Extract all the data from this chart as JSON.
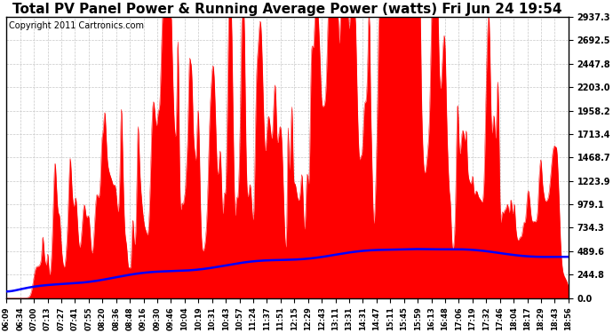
{
  "title": "Total PV Panel Power & Running Average Power (watts) Fri Jun 24 19:54",
  "copyright": "Copyright 2011 Cartronics.com",
  "yticks": [
    0.0,
    244.8,
    489.6,
    734.3,
    979.1,
    1223.9,
    1468.7,
    1713.4,
    1958.2,
    2203.0,
    2447.8,
    2692.5,
    2937.3
  ],
  "ymax": 2937.3,
  "xtick_labels": [
    "06:09",
    "06:34",
    "07:00",
    "07:13",
    "07:27",
    "07:41",
    "07:55",
    "08:20",
    "08:36",
    "08:48",
    "09:16",
    "09:30",
    "09:46",
    "10:04",
    "10:19",
    "10:31",
    "10:43",
    "10:57",
    "11:24",
    "11:37",
    "11:51",
    "12:15",
    "12:29",
    "12:43",
    "13:11",
    "13:31",
    "14:31",
    "14:47",
    "15:11",
    "15:45",
    "15:59",
    "16:13",
    "16:48",
    "17:06",
    "17:19",
    "17:32",
    "17:46",
    "18:04",
    "18:17",
    "18:29",
    "18:43",
    "18:56"
  ],
  "background_color": "#ffffff",
  "plot_bg_color": "#ffffff",
  "grid_color": "#c8c8c8",
  "bar_color": "#ff0000",
  "line_color": "#0000ff",
  "title_fontsize": 11,
  "copyright_fontsize": 7
}
